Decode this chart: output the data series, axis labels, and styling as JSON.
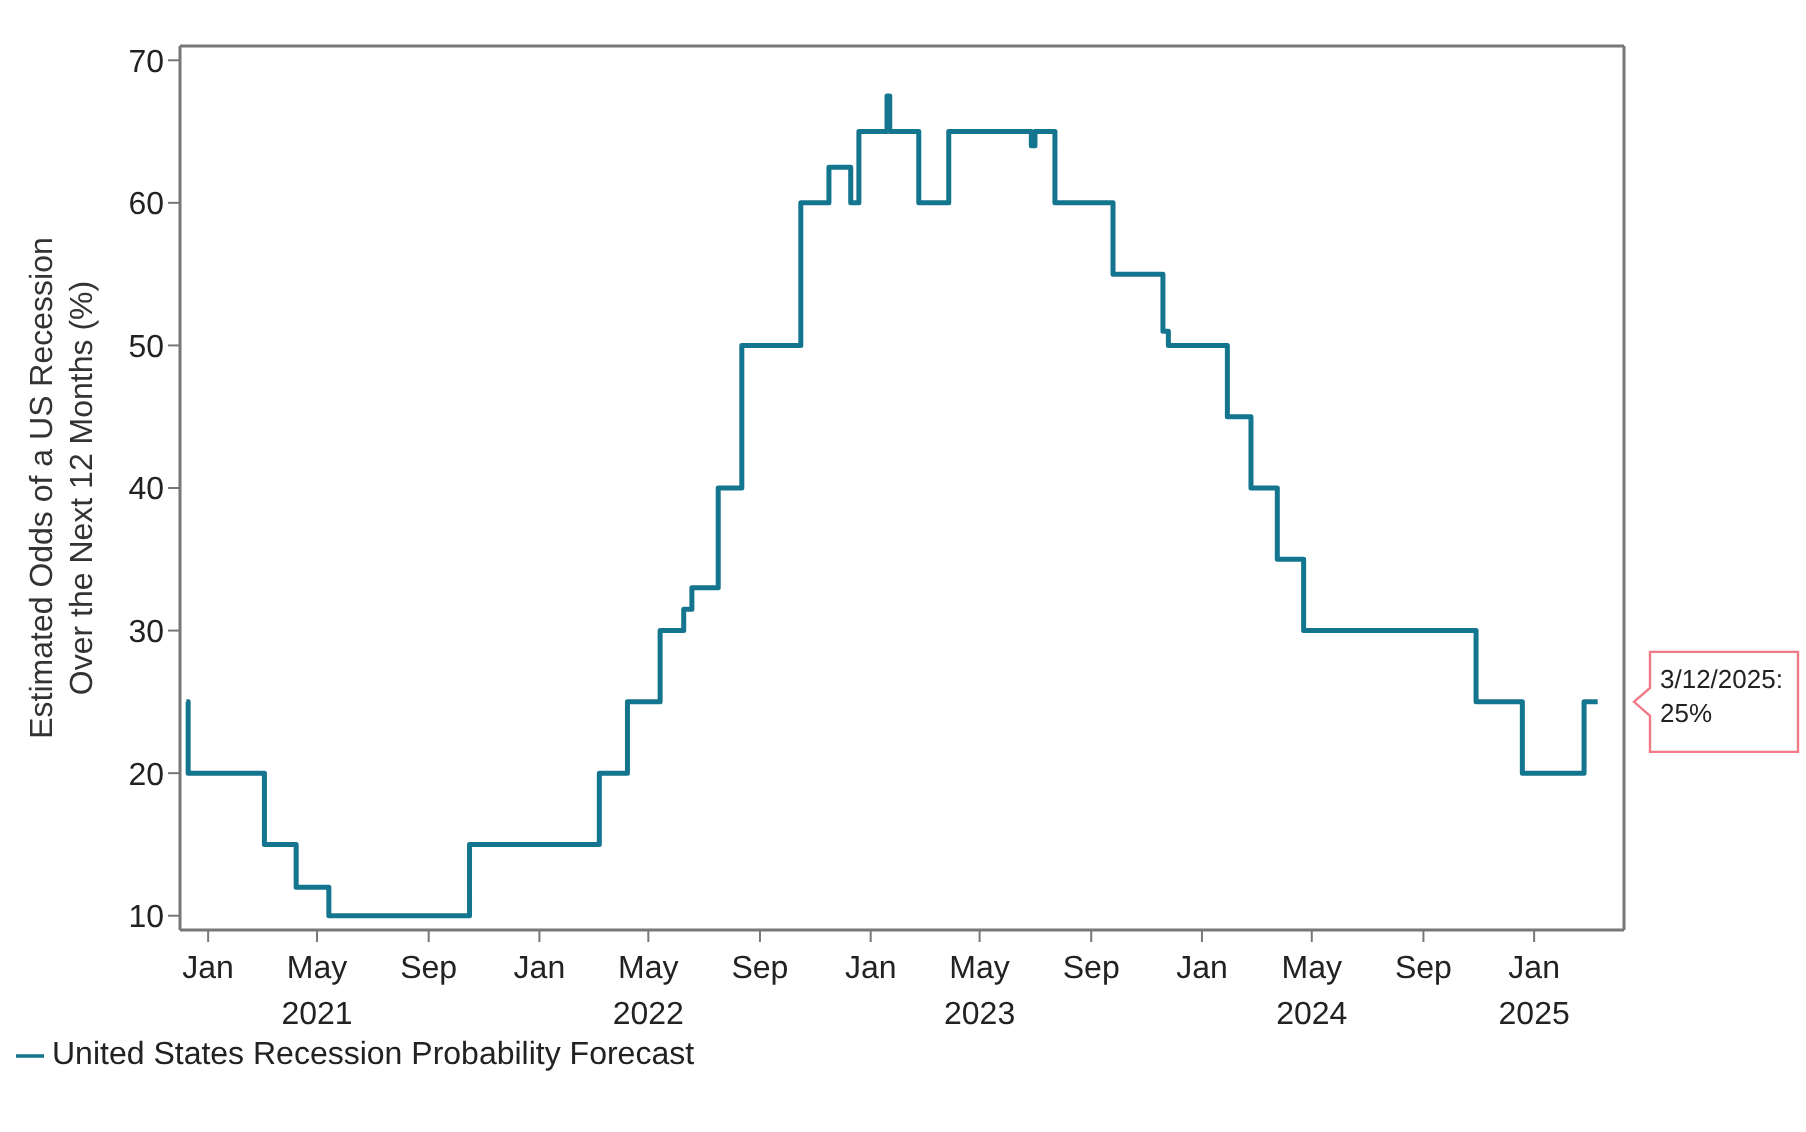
{
  "chart_data": {
    "type": "step",
    "ylabel": "Estimated Odds of a US Recession Over the Next 12 Months (%)",
    "x": [
      "2020-12-08",
      "2020-12-10",
      "2021-03-04",
      "2021-04-08",
      "2021-05-14",
      "2021-10-16",
      "2022-03-08",
      "2022-04-08",
      "2022-05-14",
      "2022-06-09",
      "2022-06-18",
      "2022-07-17",
      "2022-08-12",
      "2022-10-16",
      "2022-11-16",
      "2022-12-10",
      "2022-12-19",
      "2023-01-19",
      "2023-01-22",
      "2023-02-23",
      "2023-03-28",
      "2023-06-27",
      "2023-07-01",
      "2023-07-23",
      "2023-09-25",
      "2023-11-19",
      "2023-11-25",
      "2024-01-29",
      "2024-02-24",
      "2024-03-24",
      "2024-04-22",
      "2024-10-29",
      "2024-12-19",
      "2025-02-25",
      "2025-03-12"
    ],
    "series": [
      {
        "name": "United States Recession Probability Forecast",
        "color": "#14758f",
        "values": [
          25,
          20,
          15,
          12,
          10,
          15,
          20,
          25,
          30,
          31.5,
          33,
          40,
          50,
          60,
          62.5,
          60,
          65,
          67.5,
          65,
          60,
          65,
          64,
          65,
          60,
          55,
          51,
          50,
          45,
          40,
          35,
          30,
          25,
          20,
          25,
          25
        ]
      }
    ],
    "xlim": [
      "2020-12-01",
      "2025-04-10"
    ],
    "xticks": [
      {
        "value": "2021-01-01",
        "label": "Jan"
      },
      {
        "value": "2021-05-01",
        "label": "May\n2021"
      },
      {
        "value": "2021-09-01",
        "label": "Sep"
      },
      {
        "value": "2022-01-01",
        "label": "Jan"
      },
      {
        "value": "2022-05-01",
        "label": "May\n2022"
      },
      {
        "value": "2022-09-01",
        "label": "Sep"
      },
      {
        "value": "2023-01-01",
        "label": "Jan"
      },
      {
        "value": "2023-05-01",
        "label": "May\n2023"
      },
      {
        "value": "2023-09-01",
        "label": "Sep"
      },
      {
        "value": "2024-01-01",
        "label": "Jan"
      },
      {
        "value": "2024-05-01",
        "label": "May\n2024"
      },
      {
        "value": "2024-09-01",
        "label": "Sep"
      },
      {
        "value": "2025-01-01",
        "label": "Jan\n2025"
      }
    ],
    "ylim": [
      9,
      71
    ],
    "yticks": [
      10,
      20,
      30,
      40,
      50,
      60,
      70
    ],
    "annotations": [
      {
        "text": "3/12/2025: 25%",
        "x": "2025-03-12",
        "y": 25
      }
    ],
    "legend": "bottom left",
    "grid": false,
    "marker": "none",
    "line_style": "solid"
  }
}
